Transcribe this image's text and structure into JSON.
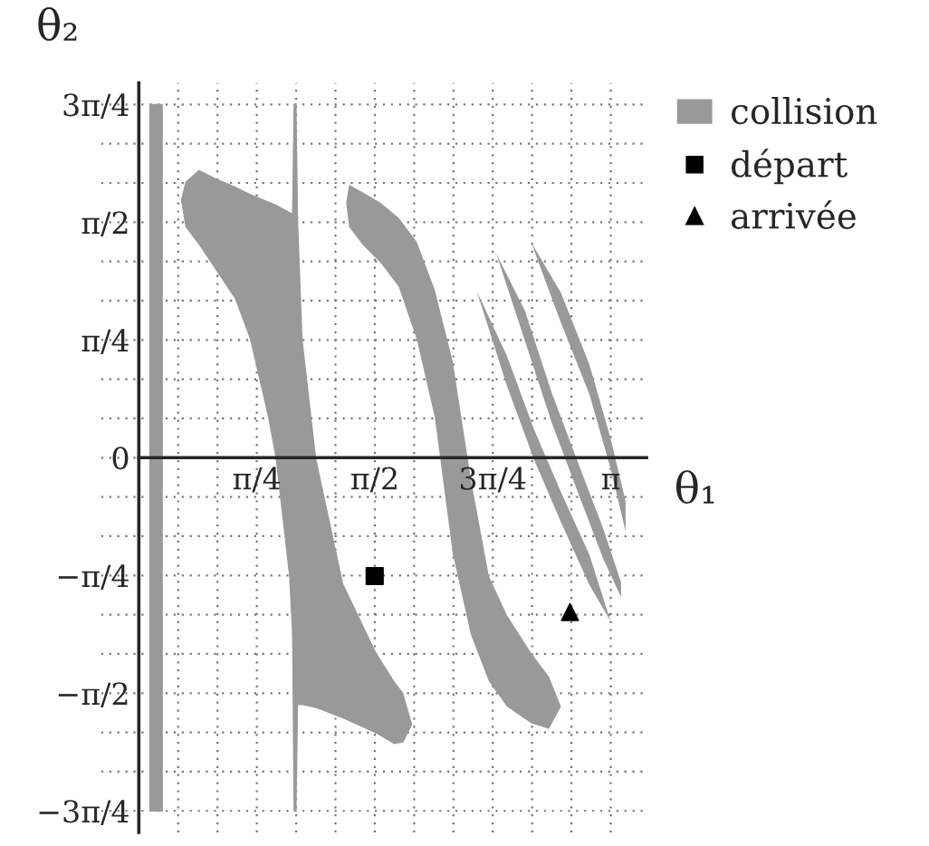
{
  "chart_data": {
    "type": "area",
    "xlabel": "θ₁",
    "ylabel": "θ₂",
    "xlim": [
      -0.25,
      3.38
    ],
    "ylim": [
      -2.5,
      2.5
    ],
    "xticks": [
      {
        "value": 0,
        "label": null
      },
      {
        "value": 0.2618,
        "label": null
      },
      {
        "value": 0.5236,
        "label": null
      },
      {
        "value": 0.7854,
        "label": "π/4"
      },
      {
        "value": 1.0472,
        "label": null
      },
      {
        "value": 1.309,
        "label": null
      },
      {
        "value": 1.5708,
        "label": "π/2"
      },
      {
        "value": 1.8326,
        "label": null
      },
      {
        "value": 2.0944,
        "label": null
      },
      {
        "value": 2.3562,
        "label": "3π/4"
      },
      {
        "value": 2.618,
        "label": null
      },
      {
        "value": 2.8798,
        "label": null
      },
      {
        "value": 3.1416,
        "label": "π"
      }
    ],
    "yticks": [
      {
        "value": -2.3562,
        "label": "−3π/4"
      },
      {
        "value": -2.0944,
        "label": null
      },
      {
        "value": -1.8326,
        "label": null
      },
      {
        "value": -1.5708,
        "label": "−π/2"
      },
      {
        "value": -1.309,
        "label": null
      },
      {
        "value": -1.0472,
        "label": null
      },
      {
        "value": -0.7854,
        "label": "−π/4"
      },
      {
        "value": -0.5236,
        "label": null
      },
      {
        "value": -0.2618,
        "label": null
      },
      {
        "value": 0,
        "label": "0"
      },
      {
        "value": 0.2618,
        "label": null
      },
      {
        "value": 0.5236,
        "label": null
      },
      {
        "value": 0.7854,
        "label": "π/4"
      },
      {
        "value": 1.0472,
        "label": null
      },
      {
        "value": 1.309,
        "label": null
      },
      {
        "value": 1.5708,
        "label": "π/2"
      },
      {
        "value": 1.8326,
        "label": null
      },
      {
        "value": 2.0944,
        "label": null
      },
      {
        "value": 2.3562,
        "label": "3π/4"
      }
    ],
    "grid": true,
    "legend": "right",
    "series": [
      {
        "name": "collision",
        "color": "#999999",
        "x": [
          0.07,
          0.16,
          0.16,
          0.07
        ],
        "values": [
          2.36,
          2.36,
          -2.36,
          -2.36
        ]
      },
      {
        "color": "#999999",
        "x": [
          0.28,
          0.31,
          0.4,
          0.52,
          0.64,
          0.74,
          0.86,
          0.91,
          1.0,
          1.02,
          1.03,
          1.05,
          1.06,
          1.09,
          1.18,
          1.36,
          1.58,
          1.7,
          1.76,
          1.82,
          1.76,
          1.7,
          1.58,
          1.36,
          1.18,
          1.09,
          1.06,
          1.05,
          1.03,
          1.02,
          1.0,
          0.91,
          0.86,
          0.74,
          0.64,
          0.52,
          0.4,
          0.31
        ],
        "values": [
          1.72,
          1.84,
          1.92,
          1.86,
          1.81,
          1.76,
          1.71,
          1.69,
          1.64,
          1.63,
          2.36,
          2.36,
          1.6,
          0.79,
          0.0,
          -0.84,
          -1.3,
          -1.49,
          -1.57,
          -1.78,
          -1.9,
          -1.91,
          -1.84,
          -1.74,
          -1.67,
          -1.65,
          -1.65,
          -2.36,
          -2.36,
          -1.18,
          -0.79,
          0.0,
          0.27,
          0.79,
          1.06,
          1.24,
          1.42,
          1.54
        ]
      },
      {
        "color": "#999999",
        "x": [
          1.38,
          1.4,
          1.49,
          1.61,
          1.73,
          1.85,
          1.97,
          2.09,
          2.21,
          2.33,
          2.45,
          2.61,
          2.73,
          2.81,
          2.73,
          2.61,
          2.45,
          2.33,
          2.21,
          2.09,
          1.97,
          1.85,
          1.73,
          1.61,
          1.49,
          1.4
        ],
        "values": [
          1.7,
          1.82,
          1.77,
          1.7,
          1.6,
          1.44,
          1.12,
          0.64,
          -0.14,
          -0.79,
          -1.05,
          -1.3,
          -1.46,
          -1.66,
          -1.81,
          -1.77,
          -1.66,
          -1.49,
          -1.18,
          -0.64,
          0.27,
          0.79,
          1.14,
          1.3,
          1.42,
          1.54
        ]
      },
      {
        "color": "#999999",
        "x": [
          2.25,
          2.45,
          2.63,
          2.81,
          3.0,
          3.14,
          3.0,
          2.81,
          2.63,
          2.45
        ],
        "values": [
          1.11,
          0.68,
          0.19,
          -0.23,
          -0.65,
          -1.09,
          -0.85,
          -0.43,
          -0.01,
          0.48
        ]
      },
      {
        "color": "#999999",
        "x": [
          2.38,
          2.57,
          2.75,
          2.93,
          3.09,
          3.21,
          3.21,
          3.09,
          2.93,
          2.75,
          2.57
        ],
        "values": [
          1.36,
          0.98,
          0.43,
          -0.05,
          -0.47,
          -0.83,
          -0.93,
          -0.67,
          -0.25,
          0.23,
          0.78
        ]
      },
      {
        "color": "#999999",
        "x": [
          2.61,
          2.81,
          3.0,
          3.14,
          3.24,
          3.24,
          3.14,
          3.0,
          2.81
        ],
        "values": [
          1.44,
          1.1,
          0.62,
          0.13,
          -0.29,
          -0.49,
          -0.07,
          0.42,
          0.9
        ]
      },
      {
        "name": "départ",
        "type": "scatter",
        "marker": "square",
        "color": "#000000",
        "x": [
          1.57
        ],
        "values": [
          -0.79
        ]
      },
      {
        "name": "arrivée",
        "type": "scatter",
        "marker": "triangle",
        "color": "#000000",
        "x": [
          2.87
        ],
        "values": [
          -1.03
        ]
      }
    ]
  }
}
